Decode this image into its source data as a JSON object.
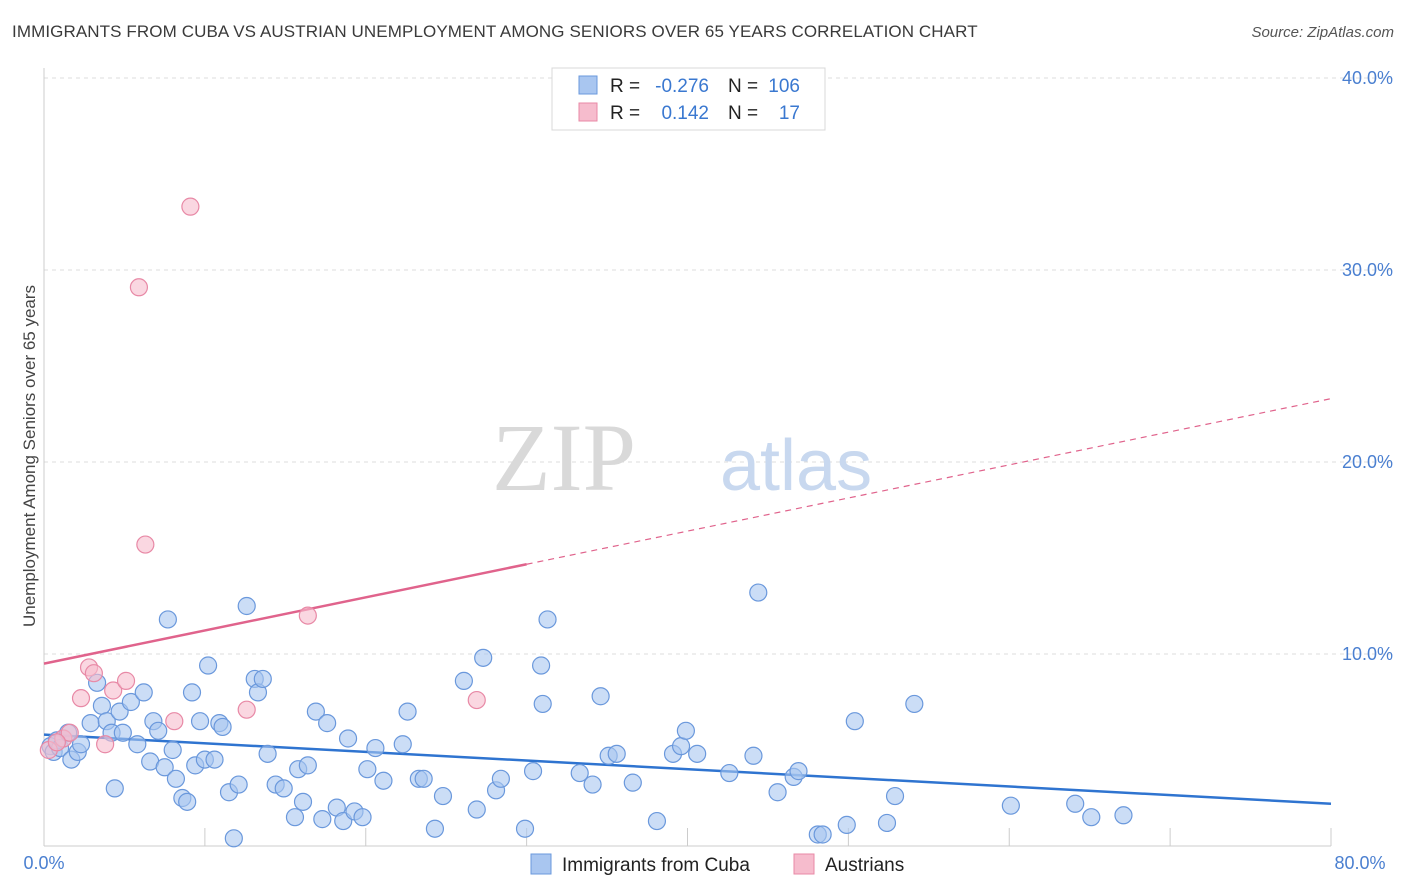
{
  "header": {
    "title": "IMMIGRANTS FROM CUBA VS AUSTRIAN UNEMPLOYMENT AMONG SENIORS OVER 65 YEARS CORRELATION CHART",
    "source": "Source: ZipAtlas.com"
  },
  "watermark": {
    "zip": "ZIP",
    "atlas": "atlas"
  },
  "legend_box": {
    "rows": [
      {
        "r_label": "R =",
        "r_value": "-0.276",
        "n_label": "N =",
        "n_value": "106"
      },
      {
        "r_label": "R =",
        "r_value": "0.142",
        "n_label": "N =",
        "n_value": "17"
      }
    ]
  },
  "colors": {
    "cuba_fill": "#a9c6f0",
    "cuba_stroke": "#6a98dc",
    "cuba_line": "#2f74d0",
    "austria_fill": "#f6bccd",
    "austria_stroke": "#e889a6",
    "austria_line": "#e0638c",
    "grid": "#dcdcdc",
    "tick": "#4a7fd0"
  },
  "chart_data": {
    "type": "scatter",
    "title": "IMMIGRANTS FROM CUBA VS AUSTRIAN UNEMPLOYMENT AMONG SENIORS OVER 65 YEARS CORRELATION CHART",
    "xlabel": "",
    "ylabel": "Unemployment Among Seniors over 65 years",
    "xlim": [
      0,
      80
    ],
    "ylim": [
      0,
      40
    ],
    "x_tick_labels": [
      "0.0%",
      "80.0%"
    ],
    "y_ticks": [
      10,
      20,
      30,
      40
    ],
    "y_tick_labels": [
      "10.0%",
      "20.0%",
      "30.0%",
      "40.0%"
    ],
    "grid": true,
    "legend_position": "bottom",
    "series": [
      {
        "name": "Immigrants from Cuba",
        "R": -0.276,
        "N": 106,
        "trend": {
          "x": [
            0,
            80
          ],
          "y": [
            5.8,
            2.2
          ]
        },
        "points": [
          [
            0.4,
            5.2
          ],
          [
            0.6,
            4.9
          ],
          [
            0.8,
            5.5
          ],
          [
            1.0,
            5.1
          ],
          [
            1.2,
            5.6
          ],
          [
            1.5,
            5.9
          ],
          [
            1.7,
            4.5
          ],
          [
            2.1,
            4.9
          ],
          [
            2.3,
            5.3
          ],
          [
            2.9,
            6.4
          ],
          [
            3.3,
            8.5
          ],
          [
            3.6,
            7.3
          ],
          [
            3.9,
            6.5
          ],
          [
            4.2,
            5.9
          ],
          [
            4.4,
            3.0
          ],
          [
            4.7,
            7.0
          ],
          [
            4.9,
            5.9
          ],
          [
            5.4,
            7.5
          ],
          [
            5.8,
            5.3
          ],
          [
            6.2,
            8.0
          ],
          [
            6.6,
            4.4
          ],
          [
            6.8,
            6.5
          ],
          [
            7.1,
            6.0
          ],
          [
            7.5,
            4.1
          ],
          [
            7.7,
            11.8
          ],
          [
            8.0,
            5.0
          ],
          [
            8.2,
            3.5
          ],
          [
            8.6,
            2.5
          ],
          [
            8.9,
            2.3
          ],
          [
            9.2,
            8.0
          ],
          [
            9.4,
            4.2
          ],
          [
            9.7,
            6.5
          ],
          [
            10.0,
            4.5
          ],
          [
            10.2,
            9.4
          ],
          [
            10.6,
            4.5
          ],
          [
            10.9,
            6.4
          ],
          [
            11.1,
            6.2
          ],
          [
            11.5,
            2.8
          ],
          [
            11.8,
            0.4
          ],
          [
            12.1,
            3.2
          ],
          [
            12.6,
            12.5
          ],
          [
            13.1,
            8.7
          ],
          [
            13.3,
            8.0
          ],
          [
            13.6,
            8.7
          ],
          [
            13.9,
            4.8
          ],
          [
            14.4,
            3.2
          ],
          [
            14.9,
            3.0
          ],
          [
            15.6,
            1.5
          ],
          [
            15.8,
            4.0
          ],
          [
            16.1,
            2.3
          ],
          [
            16.4,
            4.2
          ],
          [
            16.9,
            7.0
          ],
          [
            17.3,
            1.4
          ],
          [
            17.6,
            6.4
          ],
          [
            18.2,
            2.0
          ],
          [
            18.6,
            1.3
          ],
          [
            18.9,
            5.6
          ],
          [
            19.3,
            1.8
          ],
          [
            19.8,
            1.5
          ],
          [
            20.1,
            4.0
          ],
          [
            20.6,
            5.1
          ],
          [
            21.1,
            3.4
          ],
          [
            22.3,
            5.3
          ],
          [
            22.6,
            7.0
          ],
          [
            23.3,
            3.5
          ],
          [
            23.6,
            3.5
          ],
          [
            24.3,
            0.9
          ],
          [
            24.8,
            2.6
          ],
          [
            26.1,
            8.6
          ],
          [
            26.9,
            1.9
          ],
          [
            27.3,
            9.8
          ],
          [
            28.1,
            2.9
          ],
          [
            28.4,
            3.5
          ],
          [
            29.9,
            0.9
          ],
          [
            30.4,
            3.9
          ],
          [
            30.9,
            9.4
          ],
          [
            31.0,
            7.4
          ],
          [
            31.3,
            11.8
          ],
          [
            33.3,
            3.8
          ],
          [
            34.1,
            3.2
          ],
          [
            34.6,
            7.8
          ],
          [
            35.1,
            4.7
          ],
          [
            35.6,
            4.8
          ],
          [
            36.6,
            3.3
          ],
          [
            38.1,
            1.3
          ],
          [
            39.1,
            4.8
          ],
          [
            39.6,
            5.2
          ],
          [
            39.9,
            6.0
          ],
          [
            40.6,
            4.8
          ],
          [
            42.6,
            3.8
          ],
          [
            44.1,
            4.7
          ],
          [
            44.4,
            13.2
          ],
          [
            45.6,
            2.8
          ],
          [
            46.6,
            3.6
          ],
          [
            46.9,
            3.9
          ],
          [
            48.1,
            0.6
          ],
          [
            48.4,
            0.6
          ],
          [
            49.9,
            1.1
          ],
          [
            50.4,
            6.5
          ],
          [
            52.4,
            1.2
          ],
          [
            52.9,
            2.6
          ],
          [
            54.1,
            7.4
          ],
          [
            60.1,
            2.1
          ],
          [
            64.1,
            2.2
          ],
          [
            65.1,
            1.5
          ],
          [
            67.1,
            1.6
          ]
        ]
      },
      {
        "name": "Austrians",
        "R": 0.142,
        "N": 17,
        "trend": {
          "x": [
            0,
            80
          ],
          "y": [
            9.5,
            23.3
          ]
        },
        "trend_solid_until_x": 30,
        "points": [
          [
            0.3,
            5.0
          ],
          [
            1.2,
            5.6
          ],
          [
            1.6,
            5.9
          ],
          [
            2.3,
            7.7
          ],
          [
            2.8,
            9.3
          ],
          [
            3.1,
            9.0
          ],
          [
            3.8,
            5.3
          ],
          [
            4.3,
            8.1
          ],
          [
            5.1,
            8.6
          ],
          [
            5.9,
            29.1
          ],
          [
            6.3,
            15.7
          ],
          [
            8.1,
            6.5
          ],
          [
            9.1,
            33.3
          ],
          [
            12.6,
            7.1
          ],
          [
            16.4,
            12.0
          ],
          [
            26.9,
            7.6
          ],
          [
            0.8,
            5.4
          ]
        ]
      }
    ]
  }
}
